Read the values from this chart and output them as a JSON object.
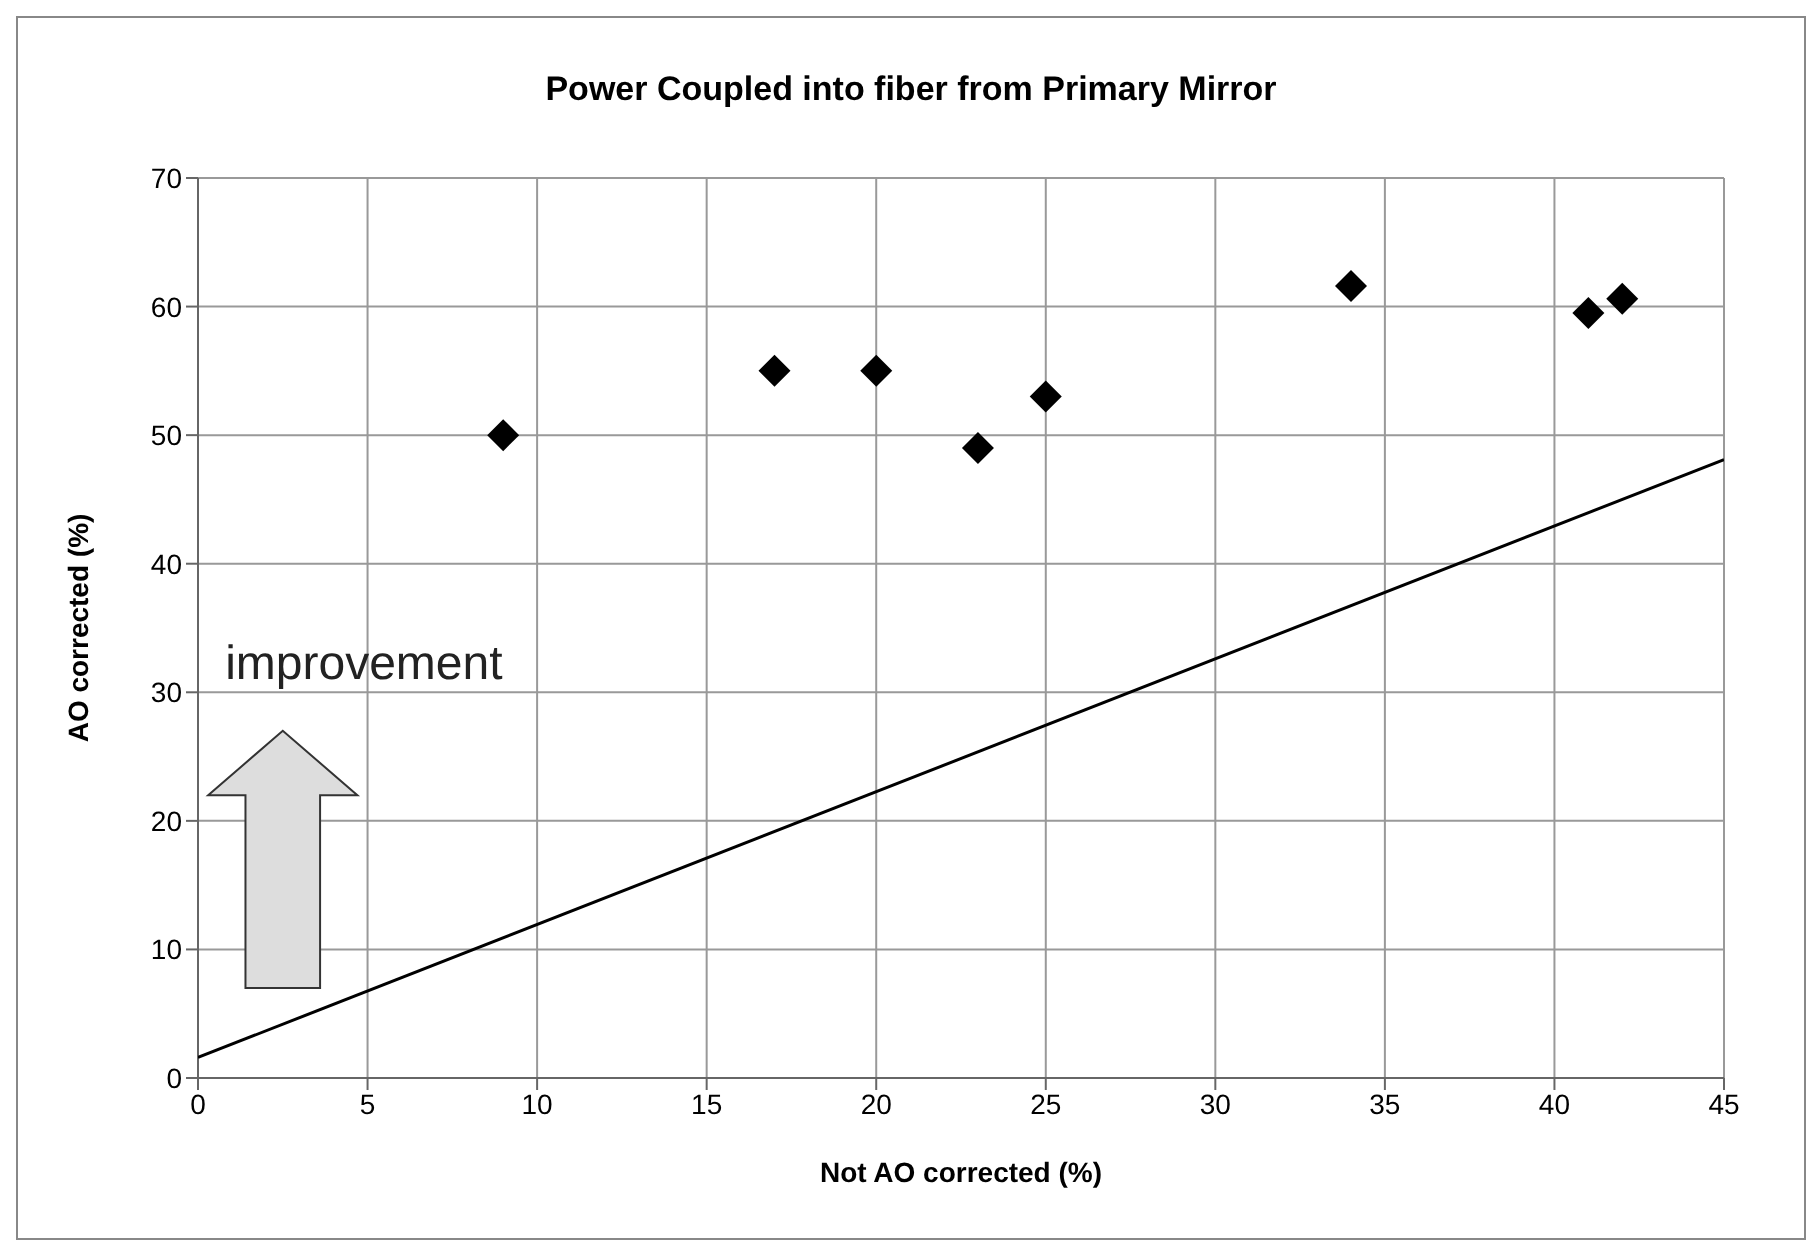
{
  "chart_data": {
    "type": "scatter",
    "title": "Power Coupled into fiber from Primary Mirror",
    "xlabel": "Not AO corrected (%)",
    "ylabel": "AO corrected (%)",
    "x": [
      9,
      17,
      20,
      23,
      25,
      34,
      41,
      42
    ],
    "series": [
      {
        "type": "scatter",
        "color": "#000000",
        "marker": "diamond",
        "values": [
          50,
          55,
          55,
          49,
          53,
          61.6,
          59.5,
          60.6
        ]
      },
      {
        "type": "line",
        "color": "#000000",
        "marker": "none",
        "x": [
          0,
          45
        ],
        "values": [
          1.6,
          48.1
        ]
      }
    ],
    "xlim": [
      0,
      45
    ],
    "xticks": [
      0,
      5,
      10,
      15,
      20,
      25,
      30,
      35,
      40,
      45
    ],
    "ylim": [
      0,
      70
    ],
    "yticks": [
      0,
      10,
      20,
      30,
      40,
      50,
      60,
      70
    ],
    "grid": true,
    "annotations": [
      "improvement"
    ]
  }
}
